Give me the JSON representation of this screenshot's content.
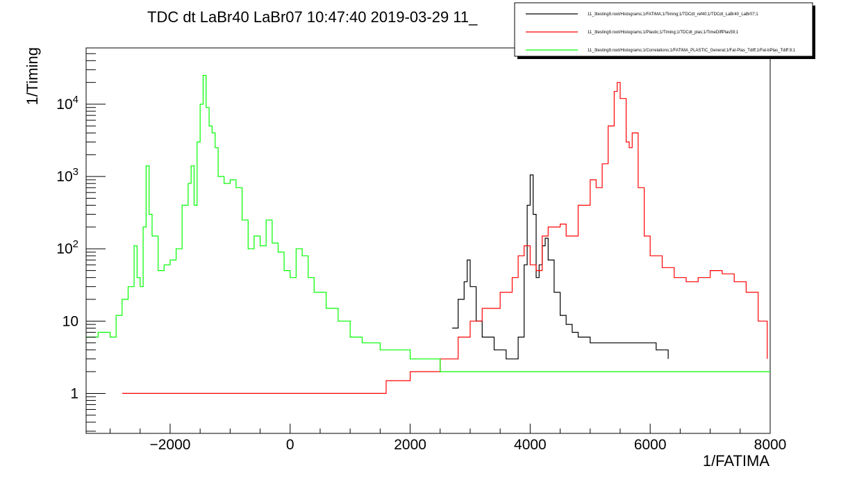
{
  "chart_data": {
    "type": "line",
    "title": "TDC dt LaBr40 LaBr07  10:47:40  2019-03-29  11_",
    "xlabel": "1/FATIMA",
    "ylabel": "1/Timing",
    "xlim": [
      -3400,
      8000
    ],
    "ylim": [
      0.28,
      60000
    ],
    "y_scale": "log",
    "x_ticks": [
      -2000,
      0,
      2000,
      4000,
      6000,
      8000
    ],
    "x_tick_labels": [
      "−2000",
      "0",
      "2000",
      "4000",
      "6000",
      "8000"
    ],
    "y_ticks": [
      1,
      10,
      100,
      1000,
      10000
    ],
    "y_tick_labels": [
      "1",
      "10",
      "10^2",
      "10^3",
      "10^4"
    ],
    "grid": false,
    "legend_position": "top-right",
    "series": [
      {
        "name": "11_3testing9.root/Histograms;1/FATIMA;1/Timing;1/TDCdt_ref40;1/TDCdt_LaBr40_LaBr07;1",
        "color": "#000000",
        "x": [
          2700,
          2800,
          2900,
          2950,
          3000,
          3100,
          3200,
          3400,
          3500,
          3600,
          3700,
          3800,
          3900,
          3950,
          4000,
          4050,
          4100,
          4150,
          4200,
          4250,
          4300,
          4400,
          4500,
          4600,
          4700,
          4800,
          5000,
          5200,
          5500,
          5800,
          6100,
          6300
        ],
        "y": [
          8,
          20,
          35,
          70,
          30,
          10,
          6,
          4,
          4,
          3,
          3,
          6,
          60,
          400,
          1050,
          300,
          40,
          60,
          110,
          140,
          70,
          25,
          12,
          9,
          7,
          6,
          5,
          5,
          5,
          5,
          4,
          3
        ]
      },
      {
        "name": "11_3testing9.root/Histograms;1/Plastic;1/Timing;1/TDCdt_plas;1/TimeDiffPlas59;1",
        "color": "#ff0000",
        "x": [
          -2800,
          -2000,
          -1000,
          0,
          1000,
          1600,
          2000,
          2500,
          2800,
          3000,
          3200,
          3500,
          3700,
          3800,
          3900,
          4000,
          4100,
          4200,
          4300,
          4500,
          4600,
          4800,
          5000,
          5100,
          5200,
          5300,
          5400,
          5450,
          5500,
          5600,
          5650,
          5700,
          5800,
          5900,
          6000,
          6200,
          6400,
          6600,
          6800,
          7000,
          7200,
          7400,
          7600,
          7800,
          7950
        ],
        "y": [
          1,
          1,
          1,
          1,
          1,
          1.5,
          2,
          3,
          6,
          10,
          15,
          25,
          40,
          80,
          110,
          60,
          50,
          150,
          200,
          220,
          150,
          400,
          900,
          700,
          1500,
          5000,
          15000,
          20000,
          12000,
          3000,
          2500,
          4000,
          700,
          150,
          80,
          55,
          40,
          35,
          40,
          50,
          45,
          35,
          25,
          10,
          3
        ]
      },
      {
        "name": "11_3testing9.root/Histograms;1/Correlations;1/FATIMA_PLASTIC_General;1/Fat-Plas_Tdiff;1/Fat-bPlas_Tdiff 9;1",
        "color": "#00ff00",
        "x": [
          -3400,
          -3200,
          -3000,
          -2900,
          -2800,
          -2700,
          -2600,
          -2550,
          -2500,
          -2450,
          -2400,
          -2350,
          -2300,
          -2200,
          -2100,
          -2000,
          -1900,
          -1800,
          -1700,
          -1650,
          -1600,
          -1550,
          -1500,
          -1450,
          -1400,
          -1350,
          -1300,
          -1250,
          -1200,
          -1100,
          -1000,
          -900,
          -800,
          -700,
          -600,
          -500,
          -400,
          -300,
          -200,
          -100,
          0,
          100,
          200,
          300,
          400,
          500,
          600,
          800,
          1000,
          1200,
          1500,
          2000,
          2500,
          3000,
          4000,
          5000,
          6000,
          7000,
          7800,
          8000
        ],
        "y": [
          6,
          7,
          6,
          12,
          20,
          30,
          110,
          40,
          30,
          200,
          1400,
          300,
          150,
          50,
          60,
          70,
          100,
          400,
          800,
          1400,
          400,
          3000,
          10000,
          25000,
          9000,
          5000,
          4000,
          2500,
          1000,
          800,
          900,
          700,
          250,
          100,
          150,
          110,
          250,
          120,
          90,
          50,
          40,
          100,
          80,
          40,
          25,
          25,
          15,
          10,
          6,
          5,
          4,
          3,
          2,
          2,
          2,
          2,
          2,
          2,
          2,
          2
        ]
      }
    ]
  }
}
